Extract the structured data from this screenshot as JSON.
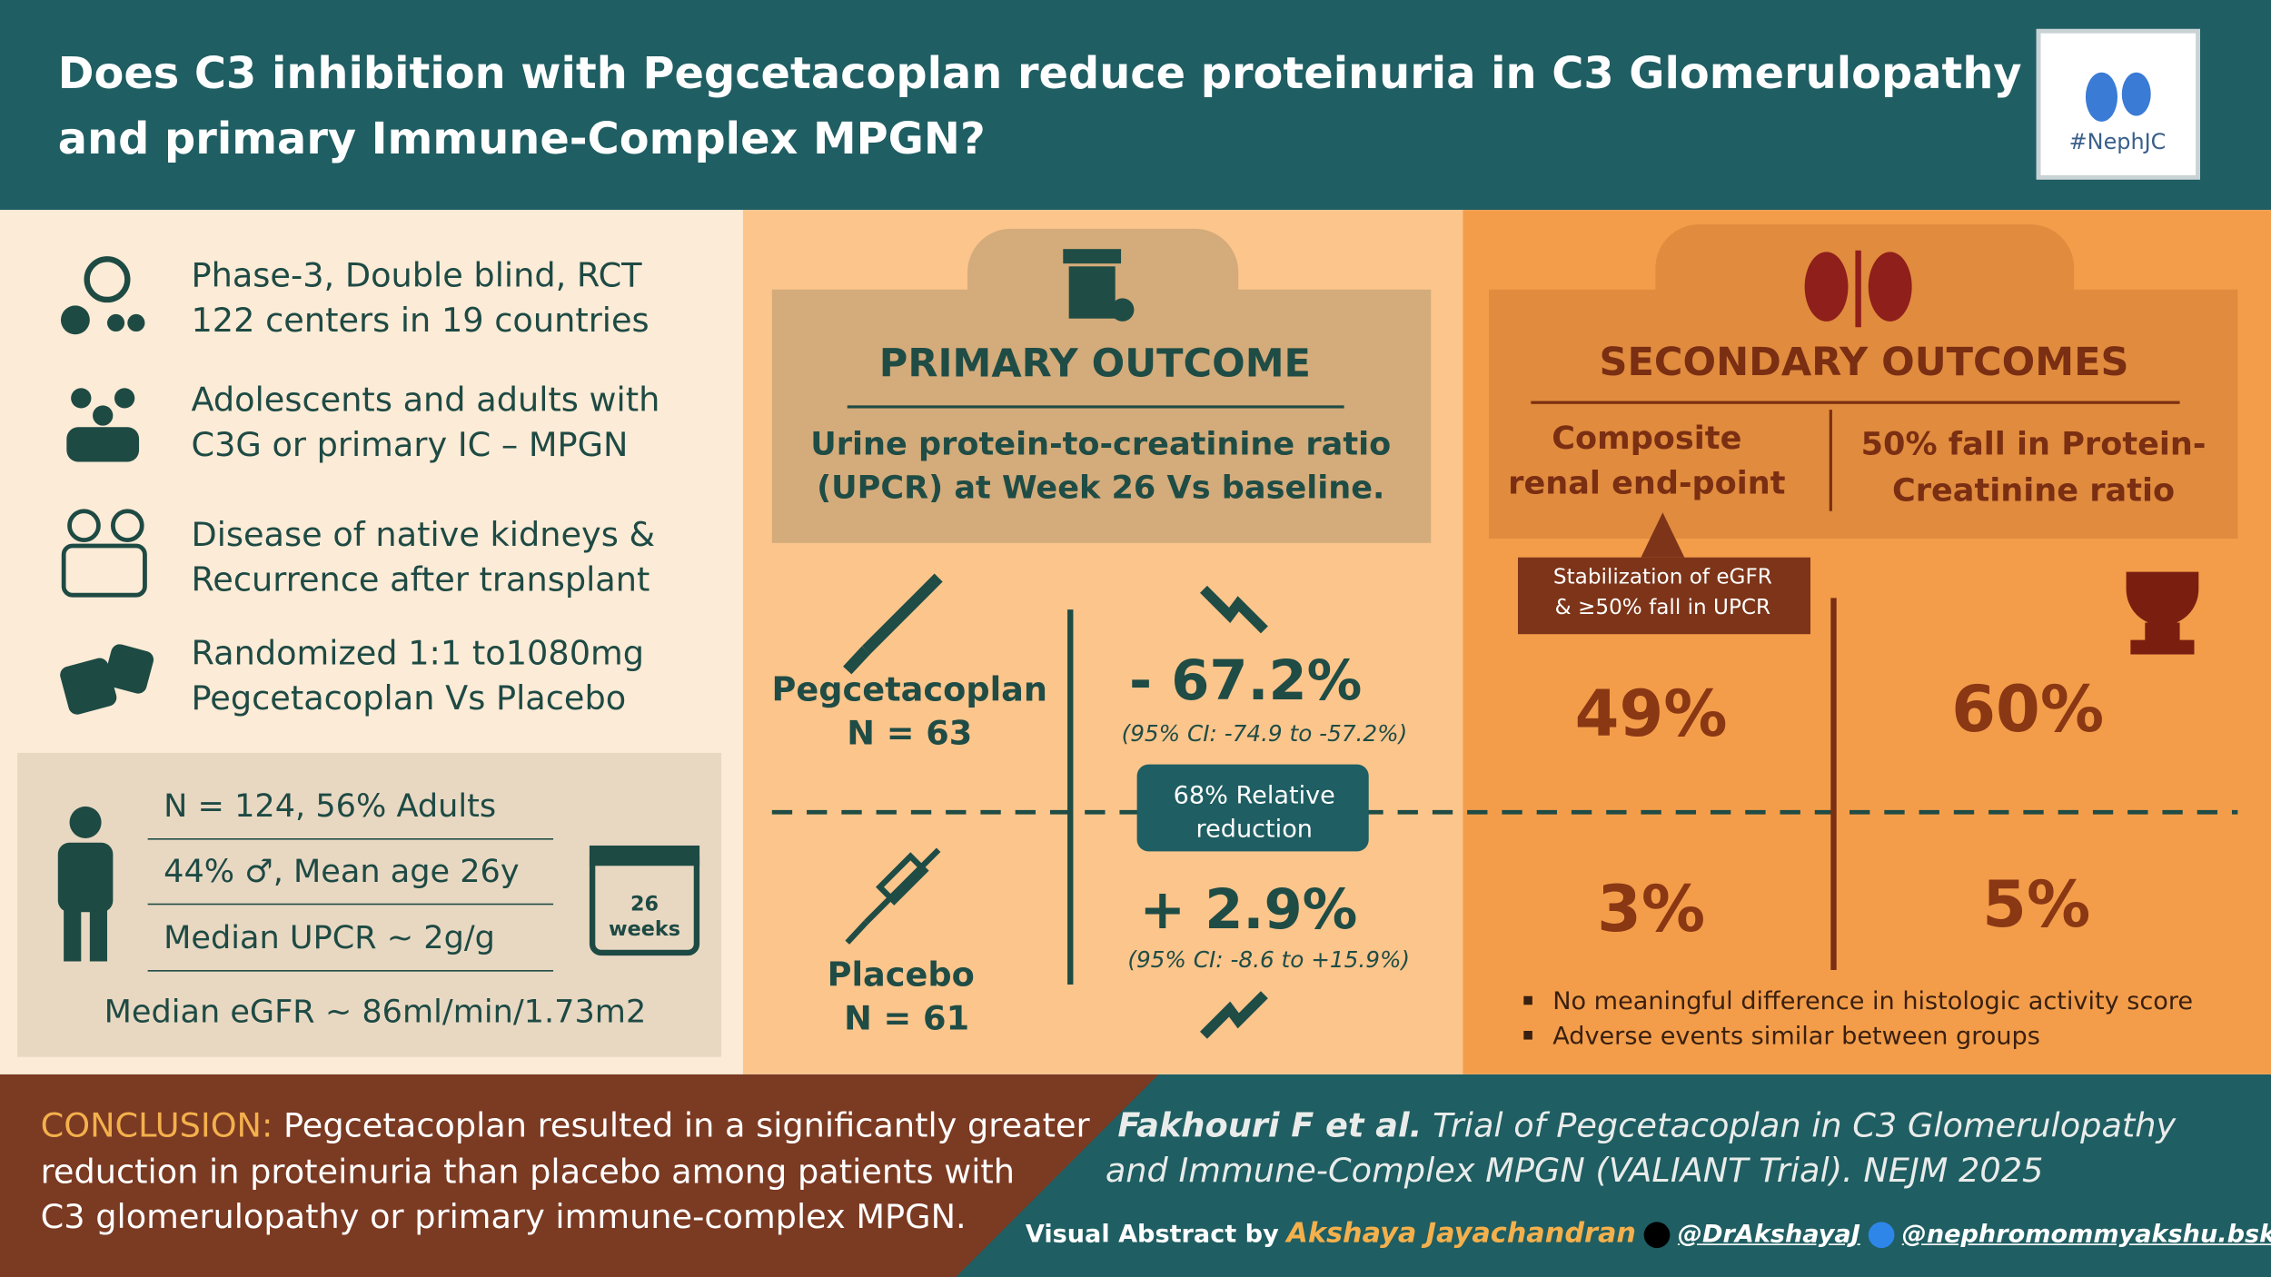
{
  "header": {
    "title_lines": [
      "Does C3 inhibition with Pegcetacoplan reduce proteinuria in C3 Glomerulopathy",
      "and primary Immune-Complex MPGN?"
    ],
    "logo": "#NephJC"
  },
  "design": {
    "items": [
      {
        "lines": [
          "Phase-3, Double blind, RCT",
          "122 centers in 19 countries"
        ]
      },
      {
        "lines": [
          "Adolescents and adults with",
          "C3G or primary IC – MPGN"
        ]
      },
      {
        "lines": [
          "Disease of  native kidneys &",
          "Recurrence after transplant"
        ]
      },
      {
        "lines": [
          "Randomized 1:1 to1080mg",
          "Pegcetacoplan Vs Placebo"
        ]
      }
    ]
  },
  "population": {
    "rows": [
      "N = 124, 56% Adults",
      "44% ♂, Mean age 26y",
      "Median UPCR ~ 2g/g"
    ],
    "egfr": "Median eGFR ~ 86ml/min/1.73m2",
    "calendar": [
      "26",
      "weeks"
    ]
  },
  "primary": {
    "title": "PRIMARY OUTCOME",
    "description_lines": [
      "Urine protein-to-creatinine ratio",
      "(UPCR) at Week 26 Vs baseline."
    ],
    "arms": [
      {
        "name": "Pegcetacoplan",
        "n": "N = 63",
        "result": "- 67.2%",
        "ci": "(95% CI: -74.9 to -57.2%)"
      },
      {
        "name": "Placebo",
        "n": "N = 61",
        "result": "+ 2.9%",
        "ci": "(95% CI: -8.6 to +15.9%)"
      }
    ],
    "relative_lines": [
      "68% Relative",
      "reduction"
    ]
  },
  "secondary": {
    "title": "SECONDARY OUTCOMES",
    "columns": [
      {
        "heading_lines": [
          "Composite",
          "renal end-point"
        ],
        "values": [
          "49%",
          "3%"
        ]
      },
      {
        "heading_lines": [
          "50% fall in Protein-",
          "Creatinine ratio"
        ],
        "values": [
          "60%",
          "5%"
        ]
      }
    ],
    "callout_lines": [
      "Stabilization of eGFR",
      "& ≥50% fall in UPCR"
    ],
    "notes": [
      "No meaningful difference in histologic activity score",
      "Adverse events similar between groups"
    ]
  },
  "conclusion": {
    "label": "CONCLUSION:",
    "lines": [
      "Pegcetacoplan resulted in a significantly greater",
      "reduction in proteinuria than placebo among patients with",
      "C3 glomerulopathy or primary immune-complex MPGN."
    ]
  },
  "citation": {
    "authors": "Fakhouri F et al.",
    "lines": [
      "Trial of  Pegcetacoplan in C3 Glomerulopathy",
      "and Immune-Complex MPGN (VALIANT Trial). NEJM 2025"
    ]
  },
  "credit": {
    "prefix": "Visual Abstract by",
    "author": "Akshaya Jayachandran",
    "handles": [
      "@DrAkshayaJ",
      "@nephromommyakshu.bsky.social"
    ]
  }
}
